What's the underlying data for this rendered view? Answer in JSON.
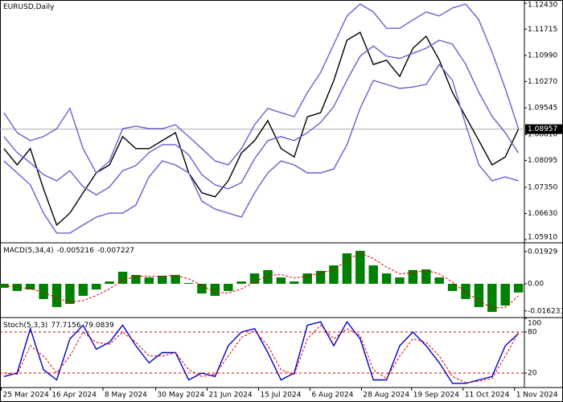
{
  "chart_data": [
    {
      "type": "line",
      "title": "EURUSD,Daily",
      "xlim": [
        -0.3,
        39.45
      ],
      "xticks": [
        {
          "value": -0.2,
          "label": "25 Mar 2024"
        },
        {
          "value": 3.5,
          "label": "16 Apr 2024"
        },
        {
          "value": 7.5,
          "label": "8 May 2024"
        },
        {
          "value": 11.5,
          "label": "30 May 2024"
        },
        {
          "value": 15.4,
          "label": "21 Jun 2024"
        },
        {
          "value": 19.3,
          "label": "15 Jul 2024"
        },
        {
          "value": 23.2,
          "label": "6 Aug 2024"
        },
        {
          "value": 27.1,
          "label": "28 Aug 2024"
        },
        {
          "value": 30.9,
          "label": "19 Sep 2024"
        },
        {
          "value": 34.8,
          "label": "11 Oct 2024"
        },
        {
          "value": 38.7,
          "label": "1 Nov 2024"
        }
      ],
      "ylim": [
        1.05865,
        1.1252
      ],
      "yticks": [
        {
          "value": 1.1243,
          "label": "1.12430"
        },
        1.11715,
        {
          "value": 1.1099,
          "label": "1.10990"
        },
        {
          "value": 1.1027,
          "label": "1.10270"
        },
        1.09545,
        {
          "value": 1.0881,
          "label": "1.08810"
        },
        1.08095,
        {
          "value": 1.0735,
          "label": "1.07350"
        },
        {
          "value": 1.0663,
          "label": "1.06630"
        },
        {
          "value": 1.0591,
          "label": "1.05910"
        }
      ],
      "series": [
        {
          "type": "line",
          "color": "#000000",
          "values": [
            1.0842,
            1.0797,
            1.0842,
            1.0731,
            1.0631,
            1.0664,
            1.072,
            1.0775,
            1.0797,
            1.0875,
            1.0842,
            1.0842,
            1.0864,
            1.0886,
            1.0775,
            1.072,
            1.0709,
            1.0753,
            1.083,
            1.0864,
            1.0919,
            1.0842,
            1.0819,
            1.093,
            1.0941,
            1.103,
            1.1141,
            1.1163,
            1.1074,
            1.1086,
            1.1041,
            1.1119,
            1.1152,
            1.1086,
            1.0997,
            1.093,
            1.0864,
            1.0797,
            1.0819,
            1.08957
          ]
        },
        {
          "type": "line",
          "color": "#6a5fd0",
          "values": [
            1.0941,
            1.0886,
            1.0864,
            1.0875,
            1.0897,
            1.0953,
            1.0842,
            1.0775,
            1.0808,
            1.0897,
            1.0904,
            1.0897,
            1.0897,
            1.0908,
            1.0875,
            1.0842,
            1.0808,
            1.0797,
            1.0842,
            1.0908,
            1.0953,
            1.0941,
            1.093,
            1.0997,
            1.1052,
            1.113,
            1.1208,
            1.1241,
            1.1219,
            1.1174,
            1.1174,
            1.1197,
            1.1219,
            1.1208,
            1.123,
            1.1241,
            1.1197,
            1.1108,
            1.1008,
            1.0897
          ]
        },
        {
          "type": "line",
          "color": "#6a5fd0",
          "values": [
            1.0875,
            1.0831,
            1.0803,
            1.077,
            1.0753,
            1.0781,
            1.0737,
            1.0714,
            1.0736,
            1.0781,
            1.0795,
            1.0831,
            1.0853,
            1.0853,
            1.0825,
            1.077,
            1.0742,
            1.0731,
            1.0748,
            1.0814,
            1.0864,
            1.0875,
            1.0864,
            1.0886,
            1.0914,
            1.0958,
            1.1031,
            1.1097,
            1.1125,
            1.1097,
            1.1091,
            1.1105,
            1.1119,
            1.1141,
            1.113,
            1.1075,
            1.0997,
            1.0931,
            1.0886,
            1.083
          ]
        },
        {
          "type": "line",
          "color": "#6a5fd0",
          "values": [
            1.0808,
            1.0775,
            1.0742,
            1.0664,
            1.0609,
            1.0609,
            1.0631,
            1.0653,
            1.0664,
            1.0664,
            1.0686,
            1.0764,
            1.0808,
            1.0797,
            1.0775,
            1.0697,
            1.0675,
            1.0664,
            1.0653,
            1.072,
            1.0775,
            1.0808,
            1.0797,
            1.0775,
            1.0775,
            1.0786,
            1.0853,
            1.0953,
            1.103,
            1.1019,
            1.1008,
            1.1012,
            1.1019,
            1.1074,
            1.103,
            1.0908,
            1.0797,
            1.0753,
            1.0764,
            1.0753
          ]
        }
      ]
    },
    {
      "type": "bar",
      "title": "MACD(5,34,4)",
      "ylim": [
        -0.0197,
        0.024
      ],
      "yticks": [
        0.01929,
        {
          "value": 0,
          "label": "0.00"
        },
        -0.016231
      ],
      "series": [
        {
          "type": "bar",
          "color": "#008000",
          "values": [
            -0.0024,
            -0.0043,
            -0.0034,
            -0.0091,
            -0.0139,
            -0.012,
            -0.0072,
            -0.0034,
            0.0014,
            0.0072,
            0.0053,
            0.0038,
            0.0048,
            0.0053,
            0.0005,
            -0.0058,
            -0.0072,
            -0.0043,
            0.0014,
            0.0062,
            0.0082,
            0.0038,
            0.0014,
            0.0062,
            0.0077,
            0.011,
            0.0182,
            0.0197,
            0.011,
            0.0062,
            0.0038,
            0.0082,
            0.0086,
            0.0038,
            -0.0043,
            -0.0091,
            -0.0139,
            -0.0168,
            -0.013,
            -0.005216
          ]
        },
        {
          "type": "line",
          "color": "#e00000",
          "dashed": true,
          "values": [
            -0.001,
            -0.002,
            -0.003,
            -0.005,
            -0.0085,
            -0.011,
            -0.01,
            -0.007,
            -0.003,
            0.002,
            0.0045,
            0.0045,
            0.0045,
            0.005,
            0.003,
            -0.001,
            -0.005,
            -0.0055,
            -0.003,
            0.001,
            0.005,
            0.0055,
            0.0035,
            0.0045,
            0.0065,
            0.0085,
            0.014,
            0.0185,
            0.015,
            0.01,
            0.006,
            0.0065,
            0.008,
            0.006,
            0.001,
            -0.005,
            -0.01,
            -0.0145,
            -0.014,
            -0.007227
          ]
        }
      ]
    },
    {
      "type": "line",
      "title": "Stoch(5,3,3)",
      "ylim": [
        0,
        100
      ],
      "yticks": [
        100,
        80,
        20
      ],
      "levels": [
        20,
        80
      ],
      "level_color": "#d00000",
      "series": [
        {
          "type": "line",
          "color": "#0000cd",
          "values": [
            15,
            20,
            85,
            25,
            10,
            70,
            90,
            55,
            65,
            90,
            60,
            35,
            50,
            50,
            10,
            20,
            15,
            60,
            80,
            85,
            50,
            10,
            20,
            90,
            95,
            60,
            95,
            70,
            10,
            10,
            60,
            80,
            60,
            35,
            5,
            5,
            10,
            15,
            60,
            77.7156
          ]
        },
        {
          "type": "line",
          "color": "#e00000",
          "dashed": true,
          "values": [
            20,
            18,
            60,
            45,
            20,
            45,
            80,
            65,
            62,
            80,
            65,
            45,
            45,
            50,
            25,
            15,
            18,
            45,
            72,
            82,
            60,
            25,
            18,
            70,
            90,
            70,
            85,
            75,
            25,
            12,
            45,
            70,
            65,
            45,
            15,
            6,
            8,
            12,
            45,
            79.0839
          ]
        }
      ]
    }
  ]
}
